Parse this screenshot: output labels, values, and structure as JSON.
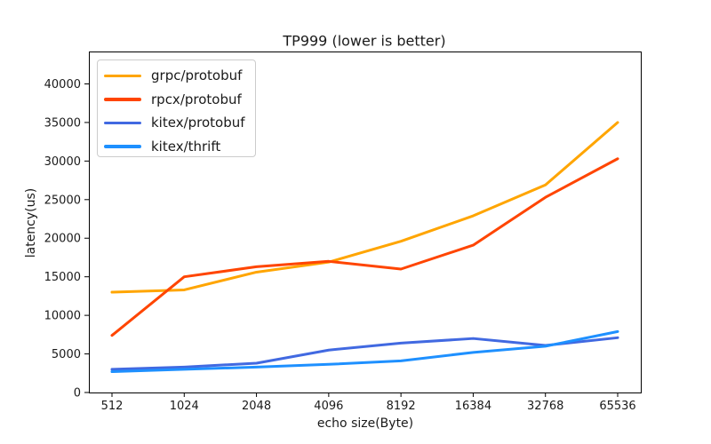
{
  "chart_data": {
    "type": "line",
    "title": "TP999 (lower is better)",
    "xlabel": "echo size(Byte)",
    "ylabel": "latency(us)",
    "categories": [
      "512",
      "1024",
      "2048",
      "4096",
      "8192",
      "16384",
      "32768",
      "65536"
    ],
    "yticks": [
      0,
      5000,
      10000,
      15000,
      20000,
      25000,
      30000,
      35000,
      40000
    ],
    "ylim": [
      0,
      44200
    ],
    "grid": false,
    "legend_position": "upper left",
    "axis_color": "#000000",
    "text_color": "#1a1a1a",
    "background_color": "#ffffff",
    "series": [
      {
        "name": "grpc/protobuf",
        "color": "#ffa500",
        "values": [
          13000,
          13300,
          15600,
          16900,
          19600,
          22900,
          26900,
          35000
        ]
      },
      {
        "name": "rpcx/protobuf",
        "color": "#ff4500",
        "values": [
          7400,
          15000,
          16300,
          17000,
          16000,
          19100,
          25300,
          30300
        ]
      },
      {
        "name": "kitex/protobuf",
        "color": "#4169e1",
        "values": [
          3000,
          3300,
          3800,
          5500,
          6400,
          7000,
          6100,
          7100
        ]
      },
      {
        "name": "kitex/thrift",
        "color": "#1e90ff",
        "values": [
          2700,
          3000,
          3300,
          3650,
          4100,
          5200,
          6000,
          7900
        ]
      }
    ]
  }
}
